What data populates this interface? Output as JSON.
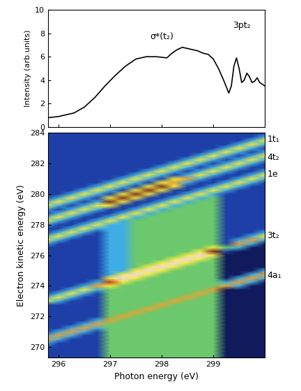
{
  "chart_data": [
    {
      "type": "line",
      "y_label": "Intensity (arb.units)",
      "color": "#000000",
      "x": [
        295.8,
        296.0,
        296.3,
        296.5,
        296.7,
        296.9,
        297.1,
        297.3,
        297.5,
        297.7,
        297.9,
        298.1,
        298.2,
        298.3,
        298.4,
        298.5,
        298.6,
        298.7,
        298.8,
        298.9,
        299.0,
        299.1,
        299.2,
        299.3,
        299.35,
        299.4,
        299.45,
        299.5,
        299.55,
        299.6,
        299.65,
        299.7,
        299.75,
        299.8,
        299.85,
        299.9,
        300.0
      ],
      "values": [
        0.8,
        0.9,
        1.2,
        1.7,
        2.5,
        3.5,
        4.4,
        5.2,
        5.8,
        6.0,
        6.0,
        5.9,
        6.3,
        6.6,
        6.8,
        6.7,
        6.6,
        6.5,
        6.3,
        6.2,
        5.8,
        5.0,
        4.0,
        2.9,
        3.5,
        5.2,
        5.9,
        5.0,
        3.8,
        4.0,
        4.6,
        4.3,
        3.8,
        3.9,
        4.2,
        3.8,
        3.5
      ],
      "xlim": [
        295.8,
        300.0
      ],
      "ylim": [
        0,
        10
      ],
      "xticks": [
        296,
        297,
        298,
        299
      ],
      "yticks": [
        0,
        2,
        4,
        6,
        8,
        10
      ],
      "tick_labels": "y",
      "annotations": [
        {
          "text": "σ*(t₂)",
          "x": 298.0,
          "y": 7.3
        },
        {
          "text": "3pt₂",
          "x": 299.55,
          "y": 8.3
        }
      ]
    },
    {
      "type": "heatmap",
      "x_label": "Photon energy (eV)",
      "y_label": "Electron kinetic energy (eV)",
      "xlim": [
        295.8,
        300.0
      ],
      "ylim": [
        269.3,
        284
      ],
      "xticks": [
        296,
        297,
        298,
        299
      ],
      "yticks": [
        270,
        272,
        274,
        276,
        278,
        280,
        282,
        284
      ],
      "band_labels": [
        {
          "text": "1t₁",
          "y": 283.6
        },
        {
          "text": "4t₂",
          "y": 282.4
        },
        {
          "text": "1e",
          "y": 281.3
        },
        {
          "text": "3t₂",
          "y": 277.3
        },
        {
          "text": "4a₁",
          "y": 274.7
        }
      ],
      "x": [
        295.75,
        296.0,
        296.25,
        296.5,
        296.75,
        297.0,
        297.25,
        297.5,
        297.75,
        298.0,
        298.25,
        298.5,
        298.75,
        299.0,
        299.25,
        299.5,
        299.75,
        300.0
      ],
      "y": [
        269.25,
        269.5,
        269.75,
        270.0,
        270.25,
        270.5,
        270.75,
        271.0,
        271.25,
        271.5,
        271.75,
        272.0,
        272.25,
        272.5,
        272.75,
        273.0,
        273.25,
        273.5,
        273.75,
        274.0,
        274.25,
        274.5,
        274.75,
        275.0,
        275.25,
        275.5,
        275.75,
        276.0,
        276.25,
        276.5,
        276.75,
        277.0,
        277.25,
        277.5,
        277.75,
        278.0,
        278.25,
        278.5,
        278.75,
        279.0,
        279.25,
        279.5,
        279.75,
        280.0,
        280.25,
        280.5,
        280.75,
        281.0,
        281.25,
        281.5,
        281.75,
        282.0,
        282.25,
        282.5,
        282.75,
        283.0,
        283.25,
        283.5,
        283.75,
        284.0
      ],
      "cells": [
        [
          1,
          1,
          1,
          1,
          1,
          3,
          3,
          3,
          3,
          3,
          3,
          3,
          3,
          3,
          0,
          0,
          0,
          0
        ],
        [
          1,
          1,
          1,
          1,
          1,
          3,
          3,
          3,
          3,
          3,
          3,
          3,
          3,
          3,
          0,
          0,
          0,
          0
        ],
        [
          1,
          1,
          1,
          1,
          1,
          3,
          3,
          3,
          3,
          3,
          3,
          3,
          3,
          3,
          0,
          0,
          0,
          0
        ],
        [
          1,
          1,
          1,
          1,
          1,
          3,
          3,
          3,
          3,
          3,
          3,
          3,
          3,
          3,
          0,
          0,
          0,
          0
        ],
        [
          2,
          1,
          1,
          1,
          1,
          3,
          3,
          3,
          3,
          3,
          3,
          3,
          3,
          3,
          0,
          0,
          0,
          0
        ],
        [
          6,
          2,
          1,
          1,
          1,
          3,
          3,
          3,
          3,
          3,
          3,
          3,
          3,
          3,
          0,
          0,
          0,
          0
        ],
        [
          2,
          6,
          2,
          1,
          1,
          3,
          3,
          3,
          3,
          3,
          3,
          3,
          3,
          3,
          0,
          0,
          0,
          0
        ],
        [
          1,
          2,
          6,
          2,
          1,
          3,
          3,
          3,
          3,
          3,
          3,
          3,
          3,
          3,
          0,
          0,
          0,
          0
        ],
        [
          1,
          1,
          2,
          6,
          2,
          3,
          3,
          3,
          3,
          3,
          3,
          3,
          3,
          3,
          0,
          0,
          0,
          0
        ],
        [
          1,
          1,
          1,
          2,
          6,
          3,
          3,
          3,
          3,
          3,
          3,
          3,
          3,
          3,
          0,
          0,
          0,
          0
        ],
        [
          1,
          1,
          1,
          1,
          2,
          6,
          3,
          3,
          3,
          3,
          3,
          3,
          3,
          3,
          0,
          0,
          0,
          0
        ],
        [
          1,
          1,
          1,
          1,
          1,
          3,
          6,
          3,
          3,
          3,
          3,
          3,
          3,
          3,
          0,
          0,
          0,
          0
        ],
        [
          1,
          1,
          1,
          1,
          1,
          3,
          3,
          6,
          3,
          3,
          3,
          3,
          3,
          3,
          0,
          0,
          0,
          0
        ],
        [
          1,
          1,
          1,
          1,
          1,
          3,
          3,
          3,
          6,
          3,
          3,
          3,
          3,
          3,
          0,
          0,
          0,
          0
        ],
        [
          1,
          1,
          1,
          1,
          1,
          3,
          3,
          3,
          3,
          6,
          3,
          3,
          3,
          3,
          0,
          0,
          0,
          0
        ],
        [
          5,
          2,
          1,
          1,
          1,
          3,
          3,
          3,
          3,
          3,
          6,
          3,
          3,
          3,
          0,
          0,
          0,
          0
        ],
        [
          2,
          5,
          2,
          1,
          1,
          3,
          3,
          3,
          3,
          3,
          3,
          6,
          3,
          3,
          0,
          0,
          0,
          0
        ],
        [
          1,
          2,
          5,
          2,
          1,
          3,
          3,
          3,
          3,
          3,
          3,
          3,
          6,
          3,
          0,
          0,
          0,
          0
        ],
        [
          1,
          1,
          2,
          5,
          2,
          3,
          3,
          3,
          3,
          3,
          3,
          3,
          3,
          6,
          0,
          0,
          0,
          0
        ],
        [
          1,
          1,
          1,
          2,
          6,
          5,
          3,
          3,
          3,
          3,
          3,
          3,
          3,
          3,
          6,
          2,
          0,
          0
        ],
        [
          1,
          1,
          1,
          1,
          2,
          7,
          5,
          3,
          3,
          3,
          3,
          3,
          3,
          3,
          2,
          6,
          2,
          0
        ],
        [
          1,
          1,
          1,
          1,
          1,
          5,
          9,
          5,
          3,
          3,
          3,
          3,
          3,
          3,
          0,
          2,
          6,
          2
        ],
        [
          1,
          1,
          1,
          1,
          1,
          2,
          5,
          9,
          5,
          3,
          3,
          3,
          3,
          3,
          0,
          0,
          2,
          6
        ],
        [
          1,
          1,
          1,
          1,
          1,
          2,
          2,
          5,
          9,
          5,
          3,
          3,
          3,
          3,
          0,
          0,
          0,
          2
        ],
        [
          1,
          1,
          1,
          1,
          1,
          2,
          2,
          3,
          5,
          9,
          5,
          3,
          3,
          3,
          0,
          0,
          0,
          0
        ],
        [
          1,
          1,
          1,
          1,
          1,
          2,
          2,
          3,
          3,
          5,
          9,
          5,
          3,
          3,
          0,
          0,
          0,
          0
        ],
        [
          1,
          1,
          1,
          1,
          1,
          2,
          2,
          3,
          3,
          3,
          5,
          9,
          5,
          3,
          0,
          0,
          0,
          0
        ],
        [
          1,
          1,
          1,
          1,
          1,
          2,
          2,
          3,
          3,
          3,
          3,
          5,
          9,
          5,
          0,
          0,
          0,
          0
        ],
        [
          1,
          1,
          1,
          1,
          1,
          2,
          2,
          3,
          3,
          3,
          3,
          3,
          5,
          8,
          1,
          0,
          0,
          0
        ],
        [
          1,
          1,
          1,
          1,
          1,
          2,
          2,
          3,
          3,
          3,
          3,
          3,
          3,
          5,
          3,
          2,
          0,
          0
        ],
        [
          2,
          1,
          1,
          1,
          1,
          2,
          2,
          3,
          3,
          3,
          3,
          3,
          3,
          3,
          1,
          6,
          2,
          0
        ],
        [
          5,
          2,
          1,
          1,
          1,
          2,
          2,
          3,
          3,
          3,
          3,
          3,
          3,
          3,
          1,
          2,
          6,
          2
        ],
        [
          2,
          5,
          2,
          1,
          1,
          2,
          2,
          3,
          3,
          3,
          3,
          3,
          3,
          3,
          1,
          1,
          2,
          5
        ],
        [
          1,
          2,
          5,
          2,
          1,
          2,
          2,
          3,
          3,
          3,
          3,
          3,
          3,
          3,
          1,
          1,
          1,
          2
        ],
        [
          1,
          1,
          2,
          5,
          2,
          2,
          2,
          3,
          3,
          3,
          3,
          3,
          3,
          3,
          1,
          1,
          1,
          1
        ],
        [
          2,
          1,
          1,
          2,
          5,
          2,
          2,
          3,
          3,
          3,
          3,
          3,
          3,
          3,
          1,
          1,
          1,
          1
        ],
        [
          5,
          2,
          1,
          1,
          2,
          5,
          2,
          3,
          3,
          3,
          3,
          3,
          3,
          3,
          1,
          1,
          1,
          1
        ],
        [
          2,
          5,
          2,
          1,
          1,
          2,
          5,
          2,
          3,
          3,
          3,
          3,
          3,
          3,
          1,
          1,
          1,
          1
        ],
        [
          1,
          2,
          5,
          2,
          1,
          1,
          2,
          5,
          2,
          3,
          3,
          3,
          3,
          3,
          1,
          1,
          1,
          1
        ],
        [
          2,
          1,
          2,
          5,
          2,
          1,
          1,
          2,
          5,
          2,
          3,
          3,
          3,
          3,
          1,
          1,
          1,
          1
        ],
        [
          5,
          2,
          1,
          2,
          5,
          5,
          1,
          1,
          2,
          5,
          2,
          3,
          3,
          3,
          1,
          1,
          1,
          1
        ],
        [
          2,
          5,
          2,
          1,
          2,
          8,
          5,
          1,
          1,
          2,
          5,
          2,
          3,
          3,
          1,
          1,
          1,
          1
        ],
        [
          1,
          2,
          5,
          2,
          1,
          5,
          8,
          5,
          1,
          1,
          2,
          5,
          2,
          3,
          1,
          1,
          1,
          1
        ],
        [
          1,
          1,
          2,
          5,
          2,
          1,
          5,
          8,
          5,
          1,
          1,
          2,
          5,
          2,
          1,
          1,
          1,
          1
        ],
        [
          1,
          1,
          1,
          2,
          5,
          2,
          1,
          5,
          8,
          5,
          1,
          1,
          2,
          5,
          2,
          1,
          1,
          1
        ],
        [
          1,
          1,
          1,
          1,
          2,
          5,
          2,
          1,
          5,
          8,
          5,
          1,
          1,
          2,
          5,
          2,
          1,
          1
        ],
        [
          1,
          1,
          1,
          1,
          1,
          2,
          5,
          2,
          1,
          5,
          6,
          2,
          1,
          1,
          2,
          5,
          2,
          1
        ],
        [
          1,
          1,
          1,
          1,
          1,
          1,
          2,
          5,
          2,
          1,
          5,
          6,
          2,
          1,
          1,
          2,
          5,
          2
        ],
        [
          1,
          1,
          1,
          1,
          1,
          1,
          1,
          2,
          5,
          2,
          1,
          2,
          5,
          2,
          1,
          1,
          2,
          5
        ],
        [
          1,
          1,
          1,
          1,
          1,
          1,
          1,
          1,
          2,
          5,
          2,
          1,
          2,
          5,
          2,
          1,
          1,
          2
        ],
        [
          1,
          1,
          1,
          1,
          1,
          1,
          1,
          1,
          1,
          2,
          5,
          2,
          1,
          2,
          5,
          2,
          1,
          1
        ],
        [
          1,
          1,
          1,
          1,
          1,
          1,
          1,
          1,
          1,
          1,
          2,
          5,
          2,
          1,
          2,
          5,
          2,
          1
        ],
        [
          1,
          1,
          1,
          1,
          1,
          1,
          1,
          1,
          1,
          1,
          1,
          2,
          5,
          2,
          1,
          2,
          5,
          2
        ],
        [
          1,
          1,
          1,
          1,
          1,
          1,
          1,
          1,
          1,
          1,
          1,
          1,
          2,
          5,
          2,
          1,
          2,
          5
        ],
        [
          1,
          1,
          1,
          1,
          1,
          1,
          1,
          1,
          1,
          1,
          1,
          1,
          1,
          2,
          5,
          2,
          1,
          2
        ],
        [
          1,
          1,
          1,
          1,
          1,
          1,
          1,
          1,
          1,
          1,
          1,
          1,
          1,
          1,
          2,
          5,
          2,
          1
        ],
        [
          1,
          1,
          1,
          1,
          1,
          1,
          1,
          1,
          1,
          1,
          1,
          1,
          1,
          1,
          1,
          2,
          5,
          2
        ],
        [
          1,
          1,
          1,
          1,
          1,
          1,
          1,
          1,
          1,
          1,
          1,
          1,
          1,
          1,
          1,
          1,
          2,
          5
        ],
        [
          1,
          1,
          1,
          1,
          1,
          1,
          1,
          1,
          1,
          1,
          1,
          1,
          1,
          1,
          1,
          1,
          1,
          2
        ],
        [
          1,
          1,
          1,
          1,
          1,
          1,
          1,
          1,
          1,
          1,
          1,
          1,
          1,
          1,
          1,
          1,
          1,
          1
        ]
      ]
    }
  ]
}
